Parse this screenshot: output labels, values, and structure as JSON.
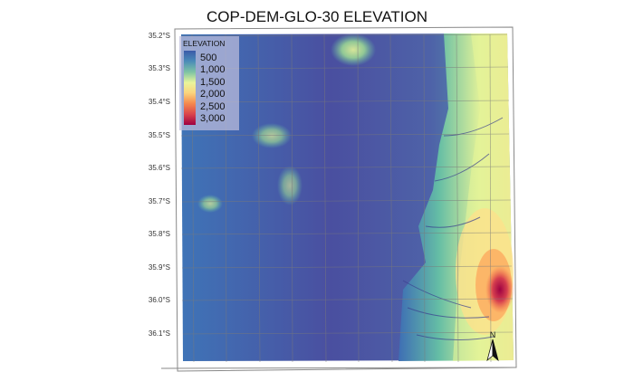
{
  "map": {
    "title": "COP-DEM-GLO-30 ELEVATION",
    "latitude_labels": [
      "35.2°S",
      "35.3°S",
      "35.4°S",
      "35.5°S",
      "35.6°S",
      "35.7°S",
      "35.8°S",
      "35.9°S",
      "36.0°S",
      "36.1°S"
    ],
    "legend": {
      "title": "ELEVATION",
      "labels": [
        "500",
        "1,000",
        "1,500",
        "2,000",
        "2,500",
        "3,000"
      ],
      "colors": [
        "#3b5aa8",
        "#4a8bb8",
        "#7fc4a4",
        "#e9f59b",
        "#fbd37c",
        "#f58a4e",
        "#d9424b",
        "#9e0142"
      ]
    },
    "north_arrow": {
      "label": "N"
    },
    "colors": {
      "low": "#4a4c9e",
      "mid_low": "#3f7fbf",
      "mid": "#66c2a5",
      "mid_high": "#e6f598",
      "high": "#fdae61",
      "peak": "#c41f4e"
    }
  }
}
